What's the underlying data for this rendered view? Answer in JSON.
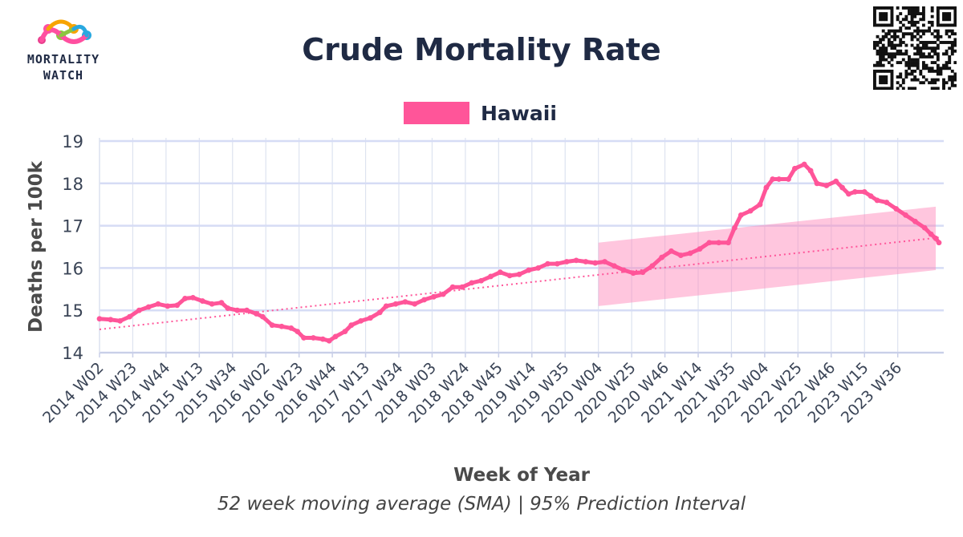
{
  "branding": {
    "logo_line1": "MORTALITY",
    "logo_line2": "WATCH",
    "logo_icon": "colorful-network-logo",
    "qr_icon": "qr-code"
  },
  "chart_data": {
    "type": "line",
    "title": "Crude Mortality Rate",
    "subtitle": "52 week moving average (SMA) | 95% Prediction Interval",
    "xlabel": "Week of Year",
    "ylabel": "Deaths per 100k",
    "ylim": [
      13.9,
      19.2
    ],
    "yticks": [
      14,
      15,
      16,
      17,
      18,
      19
    ],
    "grid": true,
    "legend_position": "top-center",
    "x_tick_labels": [
      "2014 W02",
      "2014 W23",
      "2014 W44",
      "2015 W13",
      "2015 W34",
      "2016 W02",
      "2016 W23",
      "2016 W44",
      "2017 W13",
      "2017 W34",
      "2018 W03",
      "2018 W24",
      "2018 W45",
      "2019 W14",
      "2019 W35",
      "2020 W04",
      "2020 W25",
      "2020 W46",
      "2021 W14",
      "2021 W35",
      "2022 W04",
      "2022 W25",
      "2022 W46",
      "2023 W15",
      "2023 W36"
    ],
    "x_tick_weeks": [
      1,
      22,
      43,
      64,
      85,
      106,
      127,
      148,
      169,
      190,
      211,
      232,
      253,
      274,
      295,
      316,
      337,
      358,
      379,
      400,
      421,
      442,
      463,
      484,
      505
    ],
    "x_last_week": 531,
    "series": [
      {
        "name": "Hawaii",
        "color": "#ff5599",
        "points": [
          [
            1,
            14.8
          ],
          [
            8,
            14.78
          ],
          [
            14,
            14.75
          ],
          [
            20,
            14.85
          ],
          [
            26,
            15.0
          ],
          [
            32,
            15.08
          ],
          [
            38,
            15.15
          ],
          [
            44,
            15.1
          ],
          [
            50,
            15.12
          ],
          [
            55,
            15.28
          ],
          [
            60,
            15.3
          ],
          [
            66,
            15.22
          ],
          [
            72,
            15.15
          ],
          [
            78,
            15.18
          ],
          [
            82,
            15.05
          ],
          [
            88,
            15.0
          ],
          [
            94,
            15.0
          ],
          [
            100,
            14.92
          ],
          [
            104,
            14.85
          ],
          [
            110,
            14.65
          ],
          [
            116,
            14.62
          ],
          [
            122,
            14.58
          ],
          [
            126,
            14.5
          ],
          [
            130,
            14.35
          ],
          [
            136,
            14.35
          ],
          [
            142,
            14.32
          ],
          [
            146,
            14.28
          ],
          [
            150,
            14.38
          ],
          [
            156,
            14.5
          ],
          [
            160,
            14.65
          ],
          [
            166,
            14.75
          ],
          [
            172,
            14.82
          ],
          [
            178,
            14.95
          ],
          [
            182,
            15.1
          ],
          [
            188,
            15.15
          ],
          [
            194,
            15.2
          ],
          [
            200,
            15.15
          ],
          [
            206,
            15.25
          ],
          [
            212,
            15.32
          ],
          [
            218,
            15.38
          ],
          [
            224,
            15.55
          ],
          [
            230,
            15.55
          ],
          [
            236,
            15.65
          ],
          [
            242,
            15.7
          ],
          [
            248,
            15.8
          ],
          [
            254,
            15.9
          ],
          [
            260,
            15.82
          ],
          [
            266,
            15.85
          ],
          [
            272,
            15.95
          ],
          [
            278,
            16.0
          ],
          [
            284,
            16.1
          ],
          [
            290,
            16.1
          ],
          [
            296,
            16.15
          ],
          [
            302,
            16.18
          ],
          [
            308,
            16.15
          ],
          [
            314,
            16.12
          ],
          [
            320,
            16.15
          ],
          [
            326,
            16.05
          ],
          [
            332,
            15.95
          ],
          [
            338,
            15.88
          ],
          [
            344,
            15.9
          ],
          [
            350,
            16.05
          ],
          [
            356,
            16.25
          ],
          [
            362,
            16.4
          ],
          [
            368,
            16.3
          ],
          [
            374,
            16.35
          ],
          [
            380,
            16.45
          ],
          [
            386,
            16.6
          ],
          [
            392,
            16.6
          ],
          [
            398,
            16.6
          ],
          [
            402,
            16.95
          ],
          [
            406,
            17.25
          ],
          [
            412,
            17.35
          ],
          [
            418,
            17.5
          ],
          [
            422,
            17.9
          ],
          [
            426,
            18.1
          ],
          [
            430,
            18.1
          ],
          [
            436,
            18.1
          ],
          [
            440,
            18.35
          ],
          [
            446,
            18.45
          ],
          [
            450,
            18.3
          ],
          [
            454,
            18.0
          ],
          [
            460,
            17.95
          ],
          [
            466,
            18.05
          ],
          [
            470,
            17.9
          ],
          [
            474,
            17.75
          ],
          [
            478,
            17.8
          ],
          [
            484,
            17.8
          ],
          [
            488,
            17.7
          ],
          [
            492,
            17.6
          ],
          [
            498,
            17.55
          ],
          [
            504,
            17.4
          ],
          [
            510,
            17.25
          ],
          [
            516,
            17.1
          ],
          [
            522,
            16.95
          ],
          [
            526,
            16.8
          ],
          [
            529,
            16.7
          ],
          [
            531,
            16.6
          ]
        ]
      }
    ],
    "trend": {
      "x": [
        1,
        531
      ],
      "y": [
        14.55,
        16.72
      ],
      "style": "dotted"
    },
    "prediction_interval": {
      "x_start": 316,
      "x_end": 529,
      "upper": [
        16.6,
        17.45
      ],
      "lower": [
        15.1,
        15.95
      ]
    }
  }
}
